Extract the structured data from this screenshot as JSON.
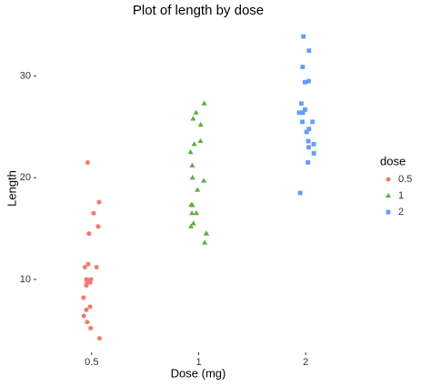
{
  "chart_data": {
    "type": "strip",
    "title": "Plot of length  by dose",
    "x_label": "Dose (mg)",
    "y_label": "Length",
    "legend_title": "dose",
    "legend": "right",
    "categories": [
      "0.5",
      "1",
      "2"
    ],
    "series": [
      {
        "name": "0.5",
        "color": "#F8766D",
        "shape": "circle",
        "values": [
          4.2,
          11.5,
          7.3,
          5.8,
          6.4,
          10,
          11.2,
          11.2,
          5.2,
          7,
          15.2,
          21.5,
          17.6,
          9.7,
          14.5,
          10,
          8.2,
          9.4,
          16.5,
          9.7
        ]
      },
      {
        "name": "1",
        "color": "#5DAF3C",
        "shape": "triangle",
        "values": [
          16.5,
          16.5,
          15.2,
          17.3,
          22.5,
          17.3,
          13.6,
          14.5,
          18.8,
          15.5,
          19.7,
          23.3,
          23.6,
          26.4,
          20,
          25.2,
          25.8,
          21.2,
          14.5,
          27.3
        ]
      },
      {
        "name": "2",
        "color": "#619CFF",
        "shape": "square",
        "values": [
          23.6,
          18.5,
          33.9,
          25.5,
          26.4,
          32.5,
          26.7,
          21.5,
          23.3,
          29.5,
          25.5,
          26.4,
          22.4,
          24.5,
          24.8,
          30.9,
          26.4,
          27.3,
          29.4,
          23
        ]
      }
    ],
    "ylim": [
      3.0,
      34.8
    ],
    "yticks": [
      10,
      20,
      30
    ],
    "grid": false
  }
}
